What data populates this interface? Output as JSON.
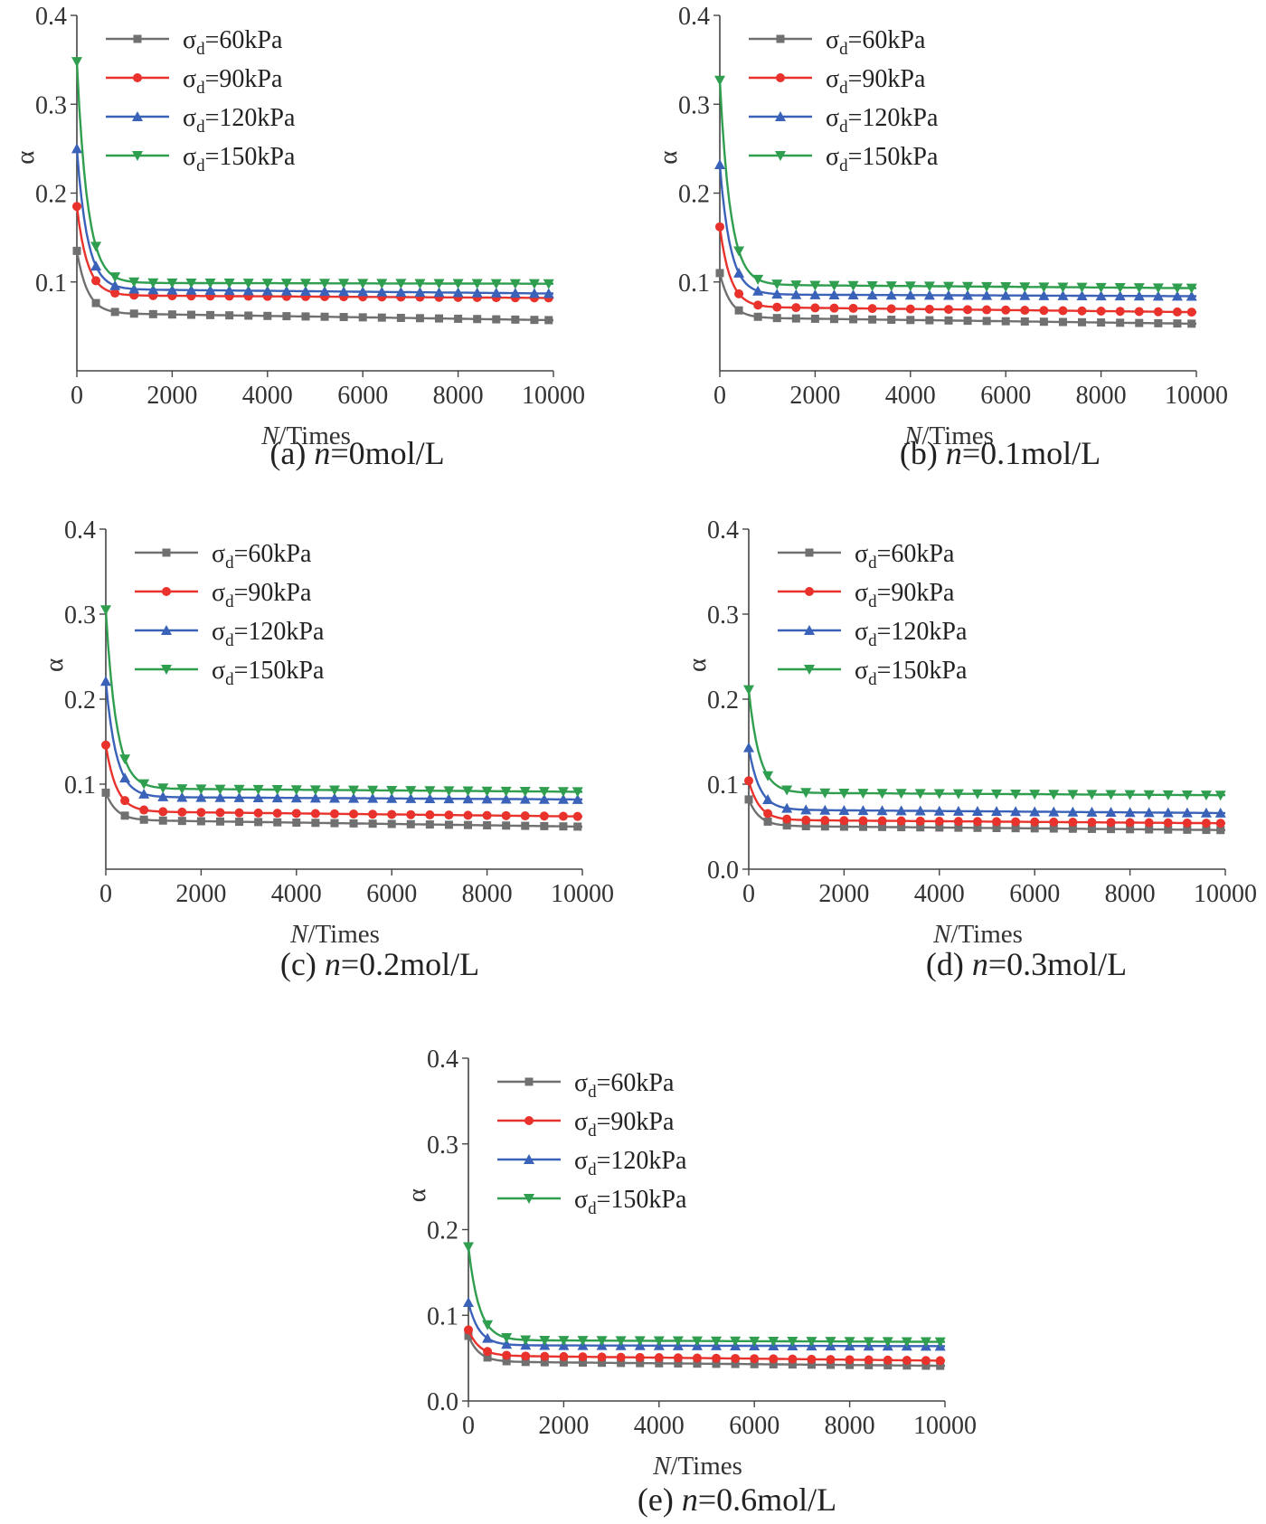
{
  "chart_data": [
    {
      "type": "line",
      "caption_prefix": "(a)",
      "caption_var": "n",
      "caption_value": "=0mol/L",
      "xlabel_var": "N",
      "xlabel_rest": "/Times",
      "ylabel": "α",
      "xlim": [
        0,
        10000
      ],
      "ylim": [
        0,
        0.4
      ],
      "xticks": [
        0,
        2000,
        4000,
        6000,
        8000,
        10000
      ],
      "yticks": [
        0.1,
        0.2,
        0.3,
        0.4
      ],
      "ytick_labels": [
        "0.1",
        "0.2",
        "0.3",
        "0.4"
      ],
      "series": [
        {
          "name": "σd=60kPa",
          "start": 0.135,
          "plateau": 0.065,
          "end": 0.057
        },
        {
          "name": "σd=90kPa",
          "start": 0.185,
          "plateau": 0.085,
          "end": 0.082
        },
        {
          "name": "σd=120kPa",
          "start": 0.25,
          "plateau": 0.092,
          "end": 0.087
        },
        {
          "name": "σd=150kPa",
          "start": 0.348,
          "plateau": 0.099,
          "end": 0.098
        }
      ]
    },
    {
      "type": "line",
      "caption_prefix": "(b)",
      "caption_var": "n",
      "caption_value": "=0.1mol/L",
      "xlabel_var": "N",
      "xlabel_rest": "/Times",
      "ylabel": "α",
      "xlim": [
        0,
        10000
      ],
      "ylim": [
        0,
        0.4
      ],
      "xticks": [
        0,
        2000,
        4000,
        6000,
        8000,
        10000
      ],
      "yticks": [
        0.1,
        0.2,
        0.3,
        0.4
      ],
      "ytick_labels": [
        "0.1",
        "0.2",
        "0.3",
        "0.4"
      ],
      "series": [
        {
          "name": "σd=60kPa",
          "start": 0.11,
          "plateau": 0.06,
          "end": 0.053
        },
        {
          "name": "σd=90kPa",
          "start": 0.162,
          "plateau": 0.072,
          "end": 0.066
        },
        {
          "name": "σd=120kPa",
          "start": 0.232,
          "plateau": 0.086,
          "end": 0.084
        },
        {
          "name": "σd=150kPa",
          "start": 0.327,
          "plateau": 0.097,
          "end": 0.093
        }
      ]
    },
    {
      "type": "line",
      "caption_prefix": "(c)",
      "caption_var": "n",
      "caption_value": "=0.2mol/L",
      "xlabel_var": "N",
      "xlabel_rest": "/Times",
      "ylabel": "α",
      "xlim": [
        0,
        10000
      ],
      "ylim": [
        0,
        0.4
      ],
      "xticks": [
        0,
        2000,
        4000,
        6000,
        8000,
        10000
      ],
      "yticks": [
        0.1,
        0.2,
        0.3,
        0.4
      ],
      "ytick_labels": [
        "0.1",
        "0.2",
        "0.3",
        "0.4"
      ],
      "series": [
        {
          "name": "σd=60kPa",
          "start": 0.09,
          "plateau": 0.058,
          "end": 0.05
        },
        {
          "name": "σd=90kPa",
          "start": 0.146,
          "plateau": 0.068,
          "end": 0.062
        },
        {
          "name": "σd=120kPa",
          "start": 0.221,
          "plateau": 0.085,
          "end": 0.082
        },
        {
          "name": "σd=150kPa",
          "start": 0.305,
          "plateau": 0.095,
          "end": 0.091
        }
      ]
    },
    {
      "type": "line",
      "caption_prefix": "(d)",
      "caption_var": "n",
      "caption_value": "=0.3mol/L",
      "xlabel_var": "N",
      "xlabel_rest": "/Times",
      "ylabel": "α",
      "xlim": [
        0,
        10000
      ],
      "ylim": [
        0,
        0.4
      ],
      "xticks": [
        0,
        2000,
        4000,
        6000,
        8000,
        10000
      ],
      "yticks": [
        0.0,
        0.1,
        0.2,
        0.3,
        0.4
      ],
      "ytick_labels": [
        "0.0",
        "0.1",
        "0.2",
        "0.3",
        "0.4"
      ],
      "series": [
        {
          "name": "σd=60kPa",
          "start": 0.082,
          "plateau": 0.051,
          "end": 0.046
        },
        {
          "name": "σd=90kPa",
          "start": 0.104,
          "plateau": 0.058,
          "end": 0.054
        },
        {
          "name": "σd=120kPa",
          "start": 0.143,
          "plateau": 0.07,
          "end": 0.066
        },
        {
          "name": "σd=150kPa",
          "start": 0.211,
          "plateau": 0.09,
          "end": 0.087
        }
      ]
    },
    {
      "type": "line",
      "caption_prefix": "(e)",
      "caption_var": "n",
      "caption_value": "=0.6mol/L",
      "xlabel_var": "N",
      "xlabel_rest": "/Times",
      "ylabel": "α",
      "xlim": [
        0,
        10000
      ],
      "ylim": [
        0,
        0.4
      ],
      "xticks": [
        0,
        2000,
        4000,
        6000,
        8000,
        10000
      ],
      "yticks": [
        0.0,
        0.1,
        0.2,
        0.3,
        0.4
      ],
      "ytick_labels": [
        "0.0",
        "0.1",
        "0.2",
        "0.3",
        "0.4"
      ],
      "series": [
        {
          "name": "σd=60kPa",
          "start": 0.076,
          "plateau": 0.046,
          "end": 0.041
        },
        {
          "name": "σd=90kPa",
          "start": 0.083,
          "plateau": 0.053,
          "end": 0.047
        },
        {
          "name": "σd=120kPa",
          "start": 0.115,
          "plateau": 0.065,
          "end": 0.064
        },
        {
          "name": "σd=150kPa",
          "start": 0.18,
          "plateau": 0.071,
          "end": 0.069
        }
      ]
    }
  ],
  "series_style": [
    {
      "label_base": "σ",
      "label_sub": "d",
      "label_rest": "=60kPa",
      "color": "#707070",
      "marker": "square"
    },
    {
      "label_base": "σ",
      "label_sub": "d",
      "label_rest": "=90kPa",
      "color": "#e8322b",
      "marker": "circle"
    },
    {
      "label_base": "σ",
      "label_sub": "d",
      "label_rest": "=120kPa",
      "color": "#3a62b8",
      "marker": "triangle-up"
    },
    {
      "label_base": "σ",
      "label_sub": "d",
      "label_rest": "=150kPa",
      "color": "#2f9e4f",
      "marker": "triangle-down"
    }
  ]
}
